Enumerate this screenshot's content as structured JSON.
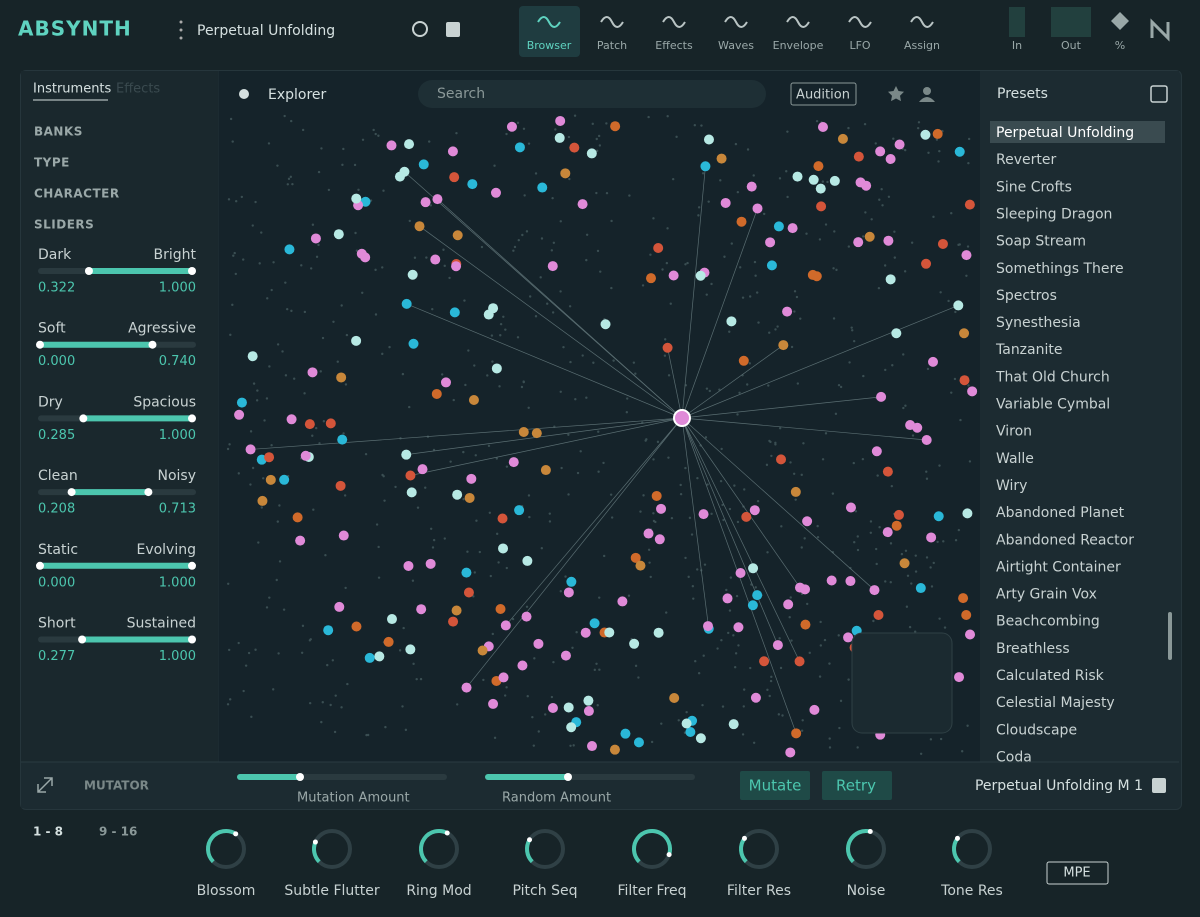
{
  "header": {
    "logo": "ABSYNTH",
    "preset": "Perpetual Unfolding",
    "tabs": [
      "Browser",
      "Patch",
      "Effects",
      "Waves",
      "Envelope",
      "LFO",
      "Assign"
    ],
    "meters": [
      "In",
      "Out",
      "%"
    ]
  },
  "sidebar": {
    "tabs": [
      "Instruments",
      "Effects"
    ],
    "sections": [
      "BANKS",
      "TYPE",
      "CHARACTER",
      "SLIDERS"
    ],
    "sliders": [
      {
        "left": "Dark",
        "right": "Bright",
        "low": {
          "value": 0.322,
          "label": "0.322"
        },
        "high": {
          "value": 1,
          "label": "1.000"
        }
      },
      {
        "left": "Soft",
        "right": "Agressive",
        "low": {
          "value": 0,
          "label": "0.000"
        },
        "high": {
          "value": 0.74,
          "label": "0.740"
        }
      },
      {
        "left": "Dry",
        "right": "Spacious",
        "low": {
          "value": 0.285,
          "label": "0.285"
        },
        "high": {
          "value": 1,
          "label": "1.000"
        }
      },
      {
        "left": "Clean",
        "right": "Noisy",
        "low": {
          "value": 0.208,
          "label": "0.208"
        },
        "high": {
          "value": 0.713,
          "label": "0.713"
        }
      },
      {
        "left": "Static",
        "right": "Evolving",
        "low": {
          "value": 0,
          "label": "0.000"
        },
        "high": {
          "value": 1,
          "label": "1.000"
        }
      },
      {
        "left": "Short",
        "right": "Sustained",
        "low": {
          "value": 0.277,
          "label": "0.277"
        },
        "high": {
          "value": 1,
          "label": "1.000"
        }
      }
    ]
  },
  "explorer": {
    "title": "Explorer",
    "search": "Search",
    "audition": "Audition"
  },
  "presets": {
    "title": "Presets",
    "items": [
      "Perpetual Unfolding",
      "Reverter",
      "Sine Crofts",
      "Sleeping Dragon",
      "Soap Stream",
      "Somethings There",
      "Spectros",
      "Synesthesia",
      "Tanzanite",
      "That Old Church",
      "Variable Cymbal",
      "Viron",
      "Walle",
      "Wiry",
      "Abandoned Planet",
      "Abandoned Reactor",
      "Airtight Container",
      "Arty Grain Vox",
      "Beachcombing",
      "Breathless",
      "Calculated Risk",
      "Celestial Majesty",
      "Cloudscape",
      "Coda"
    ]
  },
  "mutator": {
    "label": "MUTATOR",
    "amounts": [
      "Mutation Amount",
      "Random Amount"
    ],
    "buttons": [
      "Mutate",
      "Retry"
    ],
    "result": "Perpetual Unfolding M 1"
  },
  "macros": {
    "pages": [
      "1 - 8",
      "9 - 16"
    ],
    "knobs": [
      "Blossom",
      "Subtle Flutter",
      "Ring Mod",
      "Pitch Seq",
      "Filter Freq",
      "Filter Res",
      "Noise",
      "Tone Res"
    ],
    "mpe": "MPE"
  }
}
